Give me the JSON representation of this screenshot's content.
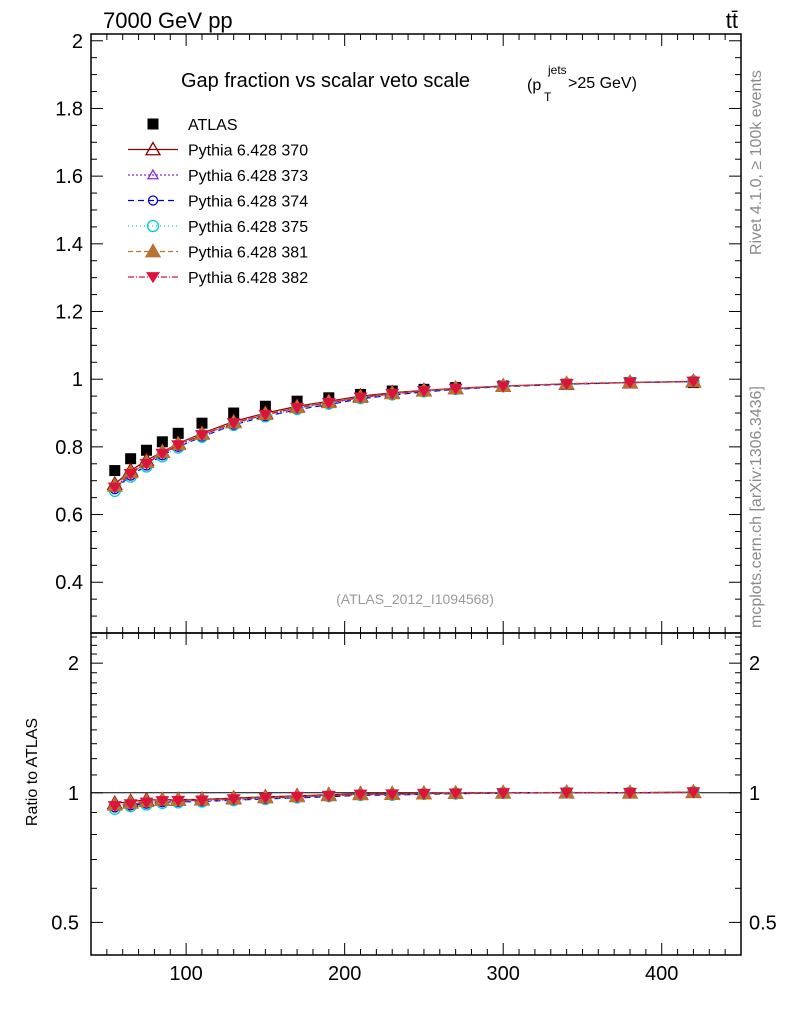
{
  "header": {
    "left_label": "7000 GeV pp",
    "right_label": "tt̄"
  },
  "side_labels": {
    "rivet": "Rivet 4.1.0, ≥ 100k events",
    "mcplots": "mcplots.cern.ch [arXiv:1306.3436]"
  },
  "colors": {
    "ATLAS": "#000000",
    "370": "#8b0000",
    "373": "#8a2be2",
    "374": "#0000cd",
    "375": "#00ced1",
    "381": "#b87333",
    "382": "#dc143c"
  },
  "chart_data": {
    "type": "scatter",
    "title": "Gap fraction vs scalar veto scale",
    "title_suffix": "(p",
    "title_sup": "jets",
    "title_sub": "T",
    "title_tail": ">25 GeV)",
    "annotation": "(ATLAS_2012_I1094568)",
    "x": [
      55,
      65,
      75,
      85,
      95,
      110,
      130,
      150,
      170,
      190,
      210,
      230,
      250,
      270,
      300,
      340,
      380,
      420
    ],
    "xlim": [
      40,
      450
    ],
    "xticks": [
      100,
      200,
      300,
      400
    ],
    "ylim": [
      0.25,
      2.02
    ],
    "yticks": [
      0.4,
      0.6,
      0.8,
      1,
      1.2,
      1.4,
      1.6,
      1.8,
      2
    ],
    "ytick_labels": [
      "0.4",
      "0.6",
      "0.8",
      "1",
      "1.2",
      "1.4",
      "1.6",
      "1.8",
      "2"
    ],
    "series": [
      {
        "name": "ATLAS",
        "style": "data",
        "values": [
          0.73,
          0.765,
          0.79,
          0.815,
          0.84,
          0.87,
          0.9,
          0.92,
          0.935,
          0.945,
          0.955,
          0.965,
          0.97,
          0.975,
          0.98,
          0.985,
          0.99,
          0.99
        ]
      },
      {
        "name": "Pythia 6.428 370",
        "key": "370",
        "marker": "triangle-open",
        "dash": "",
        "values": [
          0.69,
          0.73,
          0.76,
          0.785,
          0.81,
          0.84,
          0.875,
          0.9,
          0.92,
          0.935,
          0.95,
          0.96,
          0.967,
          0.973,
          0.98,
          0.986,
          0.99,
          0.993
        ]
      },
      {
        "name": "Pythia 6.428 373",
        "key": "373",
        "marker": "triangle-open-small",
        "dash": "2,2",
        "values": [
          0.68,
          0.72,
          0.755,
          0.78,
          0.805,
          0.835,
          0.87,
          0.895,
          0.915,
          0.93,
          0.945,
          0.957,
          0.965,
          0.972,
          0.979,
          0.986,
          0.99,
          0.994
        ]
      },
      {
        "name": "Pythia 6.428 374",
        "key": "374",
        "marker": "circle-open",
        "dash": "6,4",
        "values": [
          0.675,
          0.715,
          0.745,
          0.775,
          0.8,
          0.83,
          0.865,
          0.89,
          0.91,
          0.925,
          0.942,
          0.953,
          0.962,
          0.97,
          0.978,
          0.985,
          0.99,
          0.993
        ]
      },
      {
        "name": "Pythia 6.428 375",
        "key": "375",
        "marker": "circle-open-large",
        "dash": "1,3",
        "values": [
          0.67,
          0.712,
          0.742,
          0.772,
          0.798,
          0.83,
          0.865,
          0.89,
          0.912,
          0.928,
          0.944,
          0.955,
          0.964,
          0.971,
          0.979,
          0.986,
          0.991,
          0.994
        ]
      },
      {
        "name": "Pythia 6.428 381",
        "key": "381",
        "marker": "triangle-filled",
        "dash": "5,3",
        "values": [
          0.685,
          0.725,
          0.755,
          0.785,
          0.808,
          0.838,
          0.872,
          0.897,
          0.917,
          0.932,
          0.947,
          0.958,
          0.966,
          0.973,
          0.98,
          0.987,
          0.991,
          0.994
        ]
      },
      {
        "name": "Pythia 6.428 382",
        "key": "382",
        "marker": "triangle-down-filled",
        "dash": "6,2,1,2",
        "values": [
          0.68,
          0.72,
          0.75,
          0.78,
          0.805,
          0.835,
          0.87,
          0.895,
          0.915,
          0.93,
          0.946,
          0.957,
          0.965,
          0.972,
          0.979,
          0.986,
          0.99,
          0.993
        ]
      }
    ],
    "ratio": {
      "ylabel": "Ratio to ATLAS",
      "ylim": [
        0.42,
        2.35
      ],
      "yticks": [
        0.5,
        1,
        2
      ],
      "ytick_labels": [
        "0.5",
        "1",
        "2"
      ]
    }
  }
}
